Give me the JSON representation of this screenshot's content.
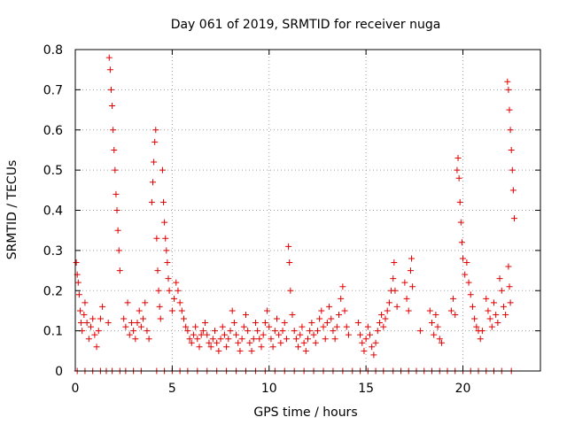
{
  "chart_data": {
    "type": "scatter",
    "title": "Day 061 of 2019, SRMTID for receiver nuga",
    "xlabel": "GPS time / hours",
    "ylabel": "SRMTID / TECUs",
    "xlim": [
      0,
      24
    ],
    "ylim": [
      0,
      0.8
    ],
    "xticks": [
      0,
      5,
      10,
      15,
      20
    ],
    "xtick_labels": [
      "0",
      "5",
      "10",
      "15",
      "20"
    ],
    "yticks": [
      0,
      0.1,
      0.2,
      0.3,
      0.4,
      0.5,
      0.6,
      0.7,
      0.8
    ],
    "ytick_labels": [
      "0",
      "0.1",
      "0.2",
      "0.3",
      "0.4",
      "0.5",
      "0.6",
      "0.7",
      "0.8"
    ],
    "grid": true,
    "marker": "+",
    "color": "#e00000",
    "series": [
      {
        "name": "SRMTID",
        "points": [
          [
            0.05,
            0.27
          ],
          [
            0.1,
            0.24
          ],
          [
            0.15,
            0.22
          ],
          [
            0.2,
            0.19
          ],
          [
            0.25,
            0.15
          ],
          [
            0.3,
            0.12
          ],
          [
            0.35,
            0.1
          ],
          [
            0.45,
            0.14
          ],
          [
            0.5,
            0.17
          ],
          [
            0.6,
            0.12
          ],
          [
            0.7,
            0.08
          ],
          [
            0.8,
            0.11
          ],
          [
            0.9,
            0.13
          ],
          [
            1.0,
            0.09
          ],
          [
            1.1,
            0.06
          ],
          [
            1.2,
            0.1
          ],
          [
            1.3,
            0.13
          ],
          [
            1.4,
            0.16
          ],
          [
            1.7,
            0.12
          ],
          [
            1.75,
            0.78
          ],
          [
            1.8,
            0.75
          ],
          [
            1.85,
            0.7
          ],
          [
            1.9,
            0.66
          ],
          [
            1.95,
            0.6
          ],
          [
            2.0,
            0.55
          ],
          [
            2.05,
            0.5
          ],
          [
            2.1,
            0.44
          ],
          [
            2.15,
            0.4
          ],
          [
            2.2,
            0.35
          ],
          [
            2.25,
            0.3
          ],
          [
            2.3,
            0.25
          ],
          [
            2.5,
            0.13
          ],
          [
            2.6,
            0.11
          ],
          [
            2.7,
            0.17
          ],
          [
            2.8,
            0.09
          ],
          [
            2.9,
            0.12
          ],
          [
            3.0,
            0.1
          ],
          [
            3.1,
            0.08
          ],
          [
            3.2,
            0.12
          ],
          [
            3.3,
            0.15
          ],
          [
            3.4,
            0.11
          ],
          [
            3.5,
            0.13
          ],
          [
            3.6,
            0.17
          ],
          [
            3.7,
            0.1
          ],
          [
            3.8,
            0.08
          ],
          [
            3.95,
            0.42
          ],
          [
            4.0,
            0.47
          ],
          [
            4.05,
            0.52
          ],
          [
            4.1,
            0.57
          ],
          [
            4.15,
            0.6
          ],
          [
            4.2,
            0.33
          ],
          [
            4.25,
            0.25
          ],
          [
            4.3,
            0.2
          ],
          [
            4.35,
            0.16
          ],
          [
            4.4,
            0.13
          ],
          [
            4.5,
            0.5
          ],
          [
            4.55,
            0.42
          ],
          [
            4.6,
            0.37
          ],
          [
            4.65,
            0.33
          ],
          [
            4.7,
            0.3
          ],
          [
            4.75,
            0.27
          ],
          [
            4.8,
            0.23
          ],
          [
            4.85,
            0.2
          ],
          [
            5.0,
            0.15
          ],
          [
            5.1,
            0.18
          ],
          [
            5.2,
            0.22
          ],
          [
            5.3,
            0.2
          ],
          [
            5.4,
            0.17
          ],
          [
            5.5,
            0.15
          ],
          [
            5.6,
            0.13
          ],
          [
            5.7,
            0.11
          ],
          [
            5.8,
            0.1
          ],
          [
            5.9,
            0.08
          ],
          [
            6.0,
            0.07
          ],
          [
            6.1,
            0.09
          ],
          [
            6.2,
            0.11
          ],
          [
            6.3,
            0.08
          ],
          [
            6.4,
            0.06
          ],
          [
            6.5,
            0.09
          ],
          [
            6.6,
            0.1
          ],
          [
            6.7,
            0.12
          ],
          [
            6.8,
            0.09
          ],
          [
            6.9,
            0.07
          ],
          [
            7.0,
            0.06
          ],
          [
            7.1,
            0.08
          ],
          [
            7.2,
            0.1
          ],
          [
            7.3,
            0.07
          ],
          [
            7.4,
            0.05
          ],
          [
            7.5,
            0.08
          ],
          [
            7.6,
            0.11
          ],
          [
            7.7,
            0.09
          ],
          [
            7.8,
            0.06
          ],
          [
            7.9,
            0.08
          ],
          [
            8.0,
            0.1
          ],
          [
            8.1,
            0.15
          ],
          [
            8.2,
            0.12
          ],
          [
            8.3,
            0.09
          ],
          [
            8.4,
            0.07
          ],
          [
            8.5,
            0.05
          ],
          [
            8.6,
            0.08
          ],
          [
            8.7,
            0.11
          ],
          [
            8.8,
            0.14
          ],
          [
            8.9,
            0.1
          ],
          [
            9.0,
            0.07
          ],
          [
            9.1,
            0.05
          ],
          [
            9.2,
            0.08
          ],
          [
            9.3,
            0.12
          ],
          [
            9.4,
            0.1
          ],
          [
            9.5,
            0.08
          ],
          [
            9.6,
            0.06
          ],
          [
            9.7,
            0.09
          ],
          [
            9.8,
            0.12
          ],
          [
            9.9,
            0.15
          ],
          [
            10.0,
            0.11
          ],
          [
            10.1,
            0.08
          ],
          [
            10.2,
            0.06
          ],
          [
            10.3,
            0.1
          ],
          [
            10.4,
            0.13
          ],
          [
            10.5,
            0.09
          ],
          [
            10.6,
            0.07
          ],
          [
            10.7,
            0.1
          ],
          [
            10.8,
            0.12
          ],
          [
            10.9,
            0.08
          ],
          [
            11.0,
            0.31
          ],
          [
            11.05,
            0.27
          ],
          [
            11.1,
            0.2
          ],
          [
            11.2,
            0.14
          ],
          [
            11.3,
            0.1
          ],
          [
            11.4,
            0.08
          ],
          [
            11.5,
            0.06
          ],
          [
            11.6,
            0.09
          ],
          [
            11.7,
            0.11
          ],
          [
            11.8,
            0.07
          ],
          [
            11.9,
            0.05
          ],
          [
            12.0,
            0.08
          ],
          [
            12.1,
            0.1
          ],
          [
            12.2,
            0.12
          ],
          [
            12.3,
            0.09
          ],
          [
            12.4,
            0.07
          ],
          [
            12.5,
            0.1
          ],
          [
            12.6,
            0.13
          ],
          [
            12.7,
            0.15
          ],
          [
            12.8,
            0.11
          ],
          [
            12.9,
            0.08
          ],
          [
            13.0,
            0.12
          ],
          [
            13.1,
            0.16
          ],
          [
            13.2,
            0.13
          ],
          [
            13.3,
            0.1
          ],
          [
            13.4,
            0.08
          ],
          [
            13.5,
            0.11
          ],
          [
            13.6,
            0.14
          ],
          [
            13.7,
            0.18
          ],
          [
            13.8,
            0.21
          ],
          [
            13.9,
            0.15
          ],
          [
            14.0,
            0.11
          ],
          [
            14.1,
            0.09
          ],
          [
            14.6,
            0.12
          ],
          [
            14.7,
            0.09
          ],
          [
            14.8,
            0.07
          ],
          [
            14.9,
            0.05
          ],
          [
            15.0,
            0.08
          ],
          [
            15.1,
            0.11
          ],
          [
            15.2,
            0.09
          ],
          [
            15.3,
            0.06
          ],
          [
            15.4,
            0.04
          ],
          [
            15.5,
            0.07
          ],
          [
            15.6,
            0.1
          ],
          [
            15.7,
            0.12
          ],
          [
            15.8,
            0.14
          ],
          [
            15.9,
            0.11
          ],
          [
            16.0,
            0.13
          ],
          [
            16.1,
            0.15
          ],
          [
            16.2,
            0.17
          ],
          [
            16.3,
            0.2
          ],
          [
            16.4,
            0.23
          ],
          [
            16.45,
            0.27
          ],
          [
            16.5,
            0.2
          ],
          [
            16.6,
            0.16
          ],
          [
            17.0,
            0.22
          ],
          [
            17.1,
            0.18
          ],
          [
            17.2,
            0.15
          ],
          [
            17.3,
            0.25
          ],
          [
            17.35,
            0.28
          ],
          [
            17.4,
            0.21
          ],
          [
            17.8,
            0.1
          ],
          [
            18.3,
            0.15
          ],
          [
            18.4,
            0.12
          ],
          [
            18.5,
            0.09
          ],
          [
            18.6,
            0.14
          ],
          [
            18.7,
            0.11
          ],
          [
            18.8,
            0.08
          ],
          [
            18.9,
            0.07
          ],
          [
            19.4,
            0.15
          ],
          [
            19.5,
            0.18
          ],
          [
            19.6,
            0.14
          ],
          [
            19.7,
            0.5
          ],
          [
            19.75,
            0.53
          ],
          [
            19.8,
            0.48
          ],
          [
            19.85,
            0.42
          ],
          [
            19.9,
            0.37
          ],
          [
            19.95,
            0.32
          ],
          [
            20.0,
            0.28
          ],
          [
            20.1,
            0.24
          ],
          [
            20.2,
            0.27
          ],
          [
            20.3,
            0.22
          ],
          [
            20.4,
            0.19
          ],
          [
            20.5,
            0.16
          ],
          [
            20.6,
            0.13
          ],
          [
            20.7,
            0.11
          ],
          [
            20.8,
            0.1
          ],
          [
            20.9,
            0.08
          ],
          [
            21.0,
            0.1
          ],
          [
            21.2,
            0.18
          ],
          [
            21.3,
            0.15
          ],
          [
            21.4,
            0.13
          ],
          [
            21.5,
            0.11
          ],
          [
            21.6,
            0.17
          ],
          [
            21.7,
            0.14
          ],
          [
            21.8,
            0.12
          ],
          [
            21.9,
            0.23
          ],
          [
            22.0,
            0.2
          ],
          [
            22.1,
            0.16
          ],
          [
            22.2,
            0.14
          ],
          [
            22.3,
            0.72
          ],
          [
            22.35,
            0.7
          ],
          [
            22.4,
            0.65
          ],
          [
            22.45,
            0.6
          ],
          [
            22.5,
            0.55
          ],
          [
            22.55,
            0.5
          ],
          [
            22.6,
            0.45
          ],
          [
            22.65,
            0.38
          ],
          [
            22.35,
            0.26
          ],
          [
            22.4,
            0.21
          ],
          [
            22.45,
            0.17
          ]
        ],
        "zero_baseline_x": [
          0.1,
          0.5,
          0.9,
          1.3,
          1.6,
          1.9,
          2.3,
          2.6,
          3.0,
          3.4,
          4.2,
          4.6,
          5.0,
          5.4,
          5.8,
          6.3,
          6.8,
          7.3,
          7.8,
          8.3,
          8.8,
          9.3,
          9.8,
          10.3,
          10.8,
          11.3,
          11.8,
          12.3,
          12.8,
          13.3,
          13.8,
          14.3,
          14.7,
          15.1,
          15.5,
          15.9,
          16.4,
          16.8,
          17.2,
          17.6,
          18.0,
          18.4,
          18.8,
          19.2,
          19.6,
          20.0,
          20.4,
          20.8,
          21.2,
          21.6,
          22.0,
          22.5
        ]
      }
    ]
  }
}
